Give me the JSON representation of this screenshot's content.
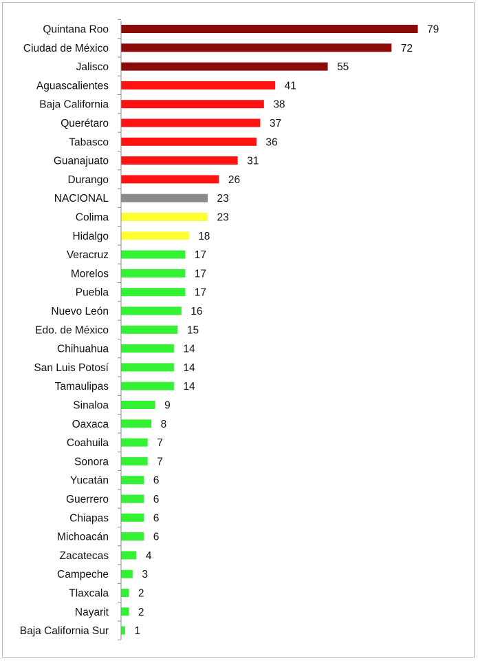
{
  "chart_data": {
    "type": "bar",
    "orientation": "horizontal",
    "title": "",
    "xlabel": "",
    "ylabel": "",
    "xlim": [
      0,
      79
    ],
    "grid": false,
    "legend": "none",
    "categories": [
      "Quintana Roo",
      "Ciudad de México",
      "Jalisco",
      "Aguascalientes",
      "Baja California",
      "Querétaro",
      "Tabasco",
      "Guanajuato",
      "Durango",
      "NACIONAL",
      "Colima",
      "Hidalgo",
      "Veracruz",
      "Morelos",
      "Puebla",
      "Nuevo León",
      "Edo. de México",
      "Chihuahua",
      "San Luis Potosí",
      "Tamaulipas",
      "Sinaloa",
      "Oaxaca",
      "Coahuila",
      "Sonora",
      "Yucatán",
      "Guerrero",
      "Chiapas",
      "Michoacán",
      "Zacatecas",
      "Campeche",
      "Tlaxcala",
      "Nayarit",
      "Baja California Sur"
    ],
    "values": [
      79,
      72,
      55,
      41,
      38,
      37,
      36,
      31,
      26,
      23,
      23,
      18,
      17,
      17,
      17,
      16,
      15,
      14,
      14,
      14,
      9,
      8,
      7,
      7,
      6,
      6,
      6,
      6,
      4,
      3,
      2,
      2,
      1
    ],
    "bar_colors": [
      "#8b0a0a",
      "#8b0a0a",
      "#8b0a0a",
      "#ff1212",
      "#ff1212",
      "#ff1212",
      "#ff1212",
      "#ff1212",
      "#ff1212",
      "#8a8a8a",
      "#ffff33",
      "#ffff33",
      "#33f233",
      "#33f233",
      "#33f233",
      "#33f233",
      "#33f233",
      "#33f233",
      "#33f233",
      "#33f233",
      "#33f233",
      "#33f233",
      "#33f233",
      "#33f233",
      "#33f233",
      "#33f233",
      "#33f233",
      "#33f233",
      "#33f233",
      "#33f233",
      "#33f233",
      "#33f233",
      "#33f233"
    ]
  }
}
